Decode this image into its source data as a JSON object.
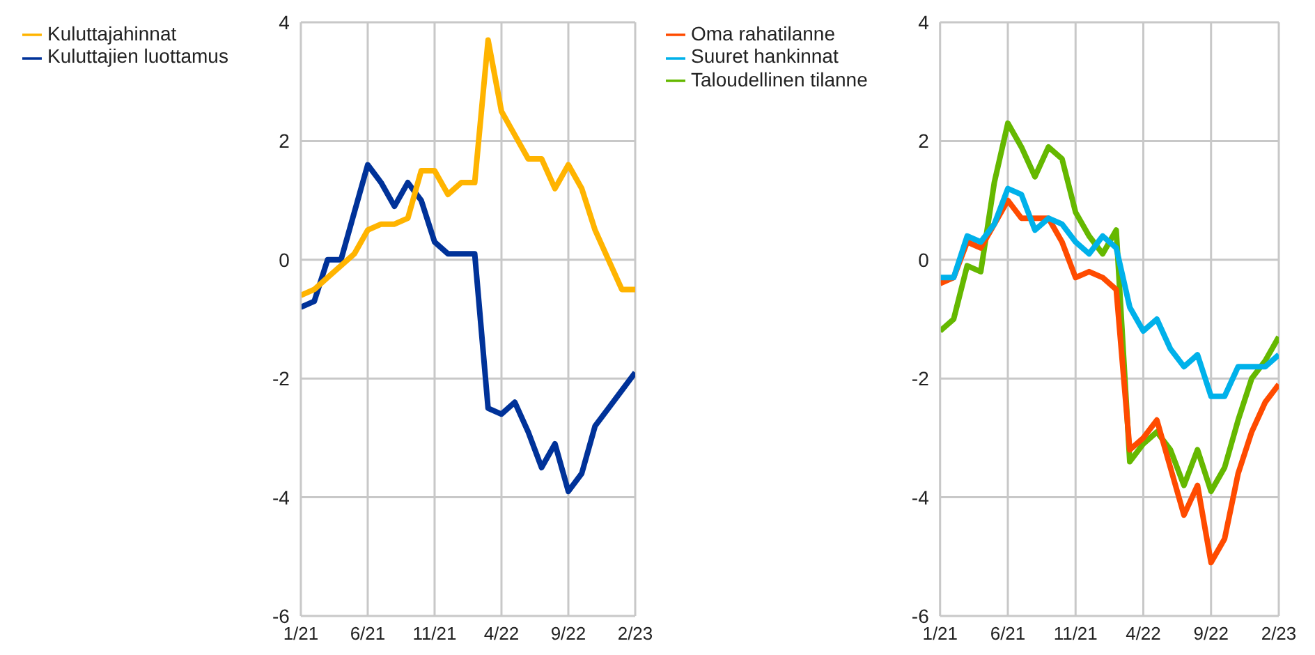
{
  "chart_data": [
    {
      "type": "line",
      "categories": [
        "1/21",
        null,
        null,
        null,
        null,
        "6/21",
        null,
        null,
        null,
        null,
        "11/21",
        null,
        null,
        null,
        null,
        "4/22",
        null,
        null,
        null,
        null,
        "9/22",
        null,
        null,
        null,
        null,
        "2/23"
      ],
      "ylim": [
        -6,
        4
      ],
      "yticks": [
        -6,
        -4,
        -2,
        0,
        2,
        4
      ],
      "grid": true,
      "legend": "top left",
      "marker": "none",
      "line_style": "solid",
      "series": [
        {
          "name": "Kuluttajien luottamus",
          "color": "#003299",
          "values": [
            -0.8,
            -0.7,
            0.0,
            0.0,
            0.8,
            1.6,
            1.3,
            0.9,
            1.3,
            1.0,
            0.3,
            0.1,
            0.1,
            0.1,
            -2.5,
            -2.6,
            -2.4,
            -2.9,
            -3.5,
            -3.1,
            -3.9,
            -3.6,
            -2.8,
            -2.5,
            -2.2,
            -1.9
          ]
        },
        {
          "name": "Kuluttajahinnat",
          "color": "#ffb400",
          "values": [
            -0.6,
            -0.5,
            -0.3,
            -0.1,
            0.1,
            0.5,
            0.6,
            0.6,
            0.7,
            1.5,
            1.5,
            1.1,
            1.3,
            1.3,
            3.7,
            2.5,
            2.1,
            1.7,
            1.7,
            1.2,
            1.6,
            1.2,
            0.5,
            0.0,
            -0.5,
            -0.5
          ]
        }
      ]
    },
    {
      "type": "line",
      "categories": [
        "1/21",
        null,
        null,
        null,
        null,
        "6/21",
        null,
        null,
        null,
        null,
        "11/21",
        null,
        null,
        null,
        null,
        "4/22",
        null,
        null,
        null,
        null,
        "9/22",
        null,
        null,
        null,
        null,
        "2/23"
      ],
      "ylim": [
        -6,
        4
      ],
      "yticks": [
        -6,
        -4,
        -2,
        0,
        2,
        4
      ],
      "grid": true,
      "legend": "top left",
      "marker": "none",
      "line_style": "solid",
      "series": [
        {
          "name": "Taloudellinen tilanne",
          "color": "#65b800",
          "values": [
            -1.2,
            -1.0,
            -0.1,
            -0.2,
            1.3,
            2.3,
            1.9,
            1.4,
            1.9,
            1.7,
            0.8,
            0.4,
            0.1,
            0.5,
            -3.4,
            -3.1,
            -2.9,
            -3.2,
            -3.8,
            -3.2,
            -3.9,
            -3.5,
            -2.7,
            -2.0,
            -1.7,
            -1.3
          ]
        },
        {
          "name": "Oma rahatilanne",
          "color": "#ff4b00",
          "values": [
            -0.4,
            -0.3,
            0.3,
            0.2,
            0.6,
            1.0,
            0.7,
            0.7,
            0.7,
            0.3,
            -0.3,
            -0.2,
            -0.3,
            -0.5,
            -3.2,
            -3.0,
            -2.7,
            -3.5,
            -4.3,
            -3.8,
            -5.1,
            -4.7,
            -3.6,
            -2.9,
            -2.4,
            -2.1
          ]
        },
        {
          "name": "Suuret hankinnat",
          "color": "#00b1ea",
          "values": [
            -0.3,
            -0.3,
            0.4,
            0.3,
            0.6,
            1.2,
            1.1,
            0.5,
            0.7,
            0.6,
            0.3,
            0.1,
            0.4,
            0.2,
            -0.8,
            -1.2,
            -1.0,
            -1.5,
            -1.8,
            -1.6,
            -2.3,
            -2.3,
            -1.8,
            -1.8,
            -1.8,
            -1.6
          ]
        }
      ]
    }
  ]
}
